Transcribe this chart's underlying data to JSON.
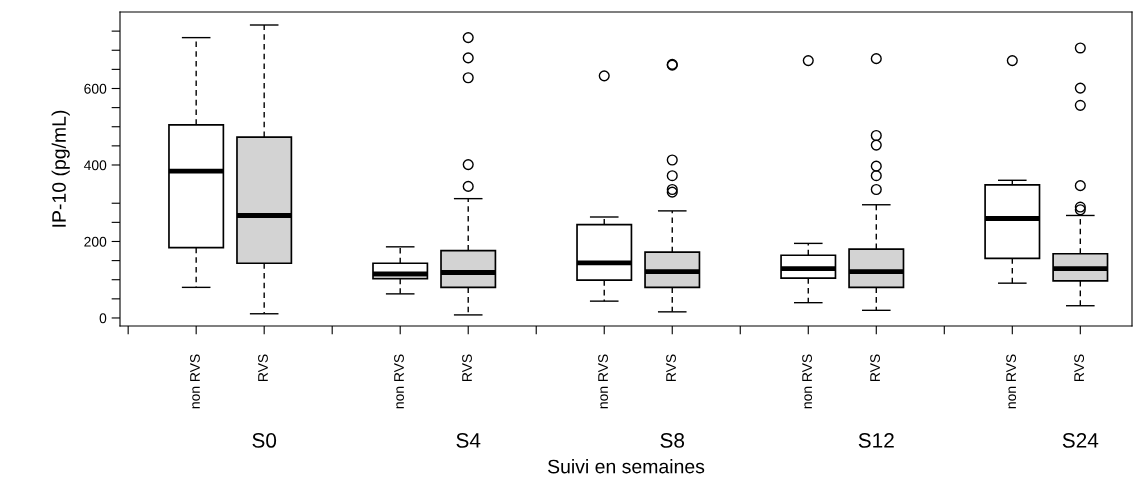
{
  "chart_data": {
    "type": "box",
    "xlabel": "Suivi en semaines",
    "ylabel": "IP-10 (pg/mL)",
    "categories": [
      null,
      "non RVS",
      "RVS",
      null,
      "non RVS",
      "RVS",
      null,
      "non RVS",
      "RVS",
      null,
      "non RVS",
      "RVS",
      null,
      "non RVS",
      "RVS"
    ],
    "colors": [
      null,
      "#ffffff",
      "#d3d3d3",
      null,
      "#ffffff",
      "#d3d3d3",
      null,
      "#ffffff",
      "#d3d3d3",
      null,
      "#ffffff",
      "#d3d3d3",
      null,
      "#ffffff",
      "#d3d3d3"
    ],
    "boxes": [
      null,
      {
        "low": 80,
        "q1": 184,
        "median": 384,
        "q3": 505,
        "high": 733
      },
      {
        "low": 11,
        "q1": 143,
        "median": 268,
        "q3": 473,
        "high": 766
      },
      null,
      {
        "low": 63,
        "q1": 103,
        "median": 115,
        "q3": 143,
        "high": 186
      },
      {
        "low": 8,
        "q1": 80,
        "median": 119,
        "q3": 176,
        "high": 312,
        "outliers": [
          733,
          680,
          628,
          401,
          344
        ]
      },
      null,
      {
        "low": 44,
        "q1": 99,
        "median": 144,
        "q3": 244,
        "high": 264,
        "outliers": [
          633
        ]
      },
      {
        "low": 16,
        "q1": 80,
        "median": 121,
        "q3": 172,
        "high": 280,
        "outliers": [
          661,
          663,
          413,
          372,
          336,
          329
        ]
      },
      null,
      {
        "low": 40,
        "q1": 104,
        "median": 129,
        "q3": 164,
        "high": 195,
        "outliers": [
          673
        ]
      },
      {
        "low": 20,
        "q1": 80,
        "median": 121,
        "q3": 180,
        "high": 296,
        "outliers": [
          678,
          477,
          452,
          397,
          372,
          336
        ]
      },
      null,
      {
        "low": 91,
        "q1": 156,
        "median": 260,
        "q3": 348,
        "high": 360,
        "outliers": [
          673
        ]
      },
      {
        "low": 32,
        "q1": 97,
        "median": 129,
        "q3": 168,
        "high": 268,
        "outliers": [
          706,
          601,
          556,
          346,
          290,
          283
        ]
      }
    ],
    "ylim": [
      -21,
      800
    ],
    "yticks": [
      0,
      {
        "value": 50,
        "label": null
      },
      {
        "value": 100,
        "label": null
      },
      {
        "value": 150,
        "label": null
      },
      200,
      {
        "value": 250,
        "label": null
      },
      {
        "value": 300,
        "label": null
      },
      400,
      {
        "value": 450,
        "label": null
      },
      {
        "value": 500,
        "label": null
      },
      {
        "value": 550,
        "label": null
      },
      600,
      {
        "value": 650,
        "label": null
      },
      {
        "value": 700,
        "label": null
      },
      {
        "value": 750,
        "label": null
      }
    ],
    "annotations": [
      "S0",
      "S4",
      "S8",
      "S12",
      "S24"
    ],
    "marker": "circle",
    "line_style": "dashed",
    "grid": false,
    "legend": false
  }
}
